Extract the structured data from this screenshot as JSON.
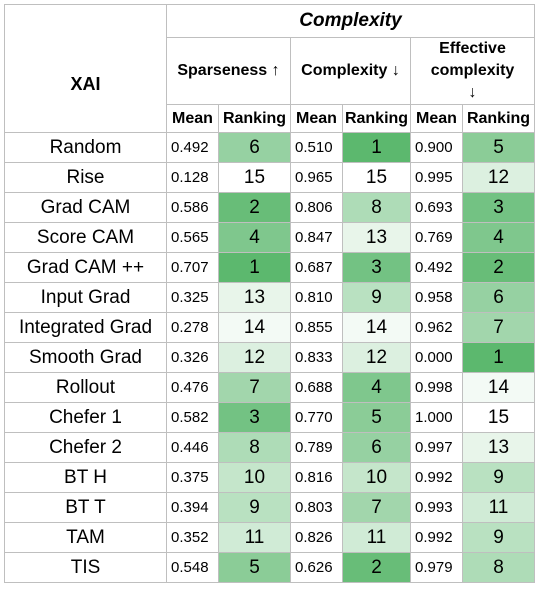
{
  "table": {
    "title": "Complexity",
    "row_header": "XAI",
    "metrics": [
      "Sparseness ↑",
      "Complexity ↓",
      "Effective complexity ↓"
    ],
    "sub_headers": [
      "Mean",
      "Ranking"
    ],
    "rows": [
      {
        "name": "Random",
        "values": [
          "0.492",
          "6",
          "0.510",
          "1",
          "0.900",
          "5"
        ]
      },
      {
        "name": "Rise",
        "values": [
          "0.128",
          "15",
          "0.965",
          "15",
          "0.995",
          "12"
        ]
      },
      {
        "name": "Grad CAM",
        "values": [
          "0.586",
          "2",
          "0.806",
          "8",
          "0.693",
          "3"
        ]
      },
      {
        "name": "Score CAM",
        "values": [
          "0.565",
          "4",
          "0.847",
          "13",
          "0.769",
          "4"
        ]
      },
      {
        "name": "Grad CAM ++",
        "values": [
          "0.707",
          "1",
          "0.687",
          "3",
          "0.492",
          "2"
        ]
      },
      {
        "name": "Input Grad",
        "values": [
          "0.325",
          "13",
          "0.810",
          "9",
          "0.958",
          "6"
        ]
      },
      {
        "name": "Integrated Grad",
        "values": [
          "0.278",
          "14",
          "0.855",
          "14",
          "0.962",
          "7"
        ]
      },
      {
        "name": "Smooth Grad",
        "values": [
          "0.326",
          "12",
          "0.833",
          "12",
          "0.000",
          "1"
        ]
      },
      {
        "name": "Rollout",
        "values": [
          "0.476",
          "7",
          "0.688",
          "4",
          "0.998",
          "14"
        ]
      },
      {
        "name": "Chefer 1",
        "values": [
          "0.582",
          "3",
          "0.770",
          "5",
          "1.000",
          "15"
        ]
      },
      {
        "name": "Chefer 2",
        "values": [
          "0.446",
          "8",
          "0.789",
          "6",
          "0.997",
          "13"
        ]
      },
      {
        "name": "BT H",
        "values": [
          "0.375",
          "10",
          "0.816",
          "10",
          "0.992",
          "9"
        ]
      },
      {
        "name": "BT T",
        "values": [
          "0.394",
          "9",
          "0.803",
          "7",
          "0.993",
          "11"
        ]
      },
      {
        "name": "TAM",
        "values": [
          "0.352",
          "11",
          "0.826",
          "11",
          "0.992",
          "9"
        ]
      },
      {
        "name": "TIS",
        "values": [
          "0.548",
          "5",
          "0.626",
          "2",
          "0.979",
          "8"
        ]
      }
    ],
    "color_scale": {
      "best": "#5cb86e",
      "worst": "#ffffff"
    }
  }
}
